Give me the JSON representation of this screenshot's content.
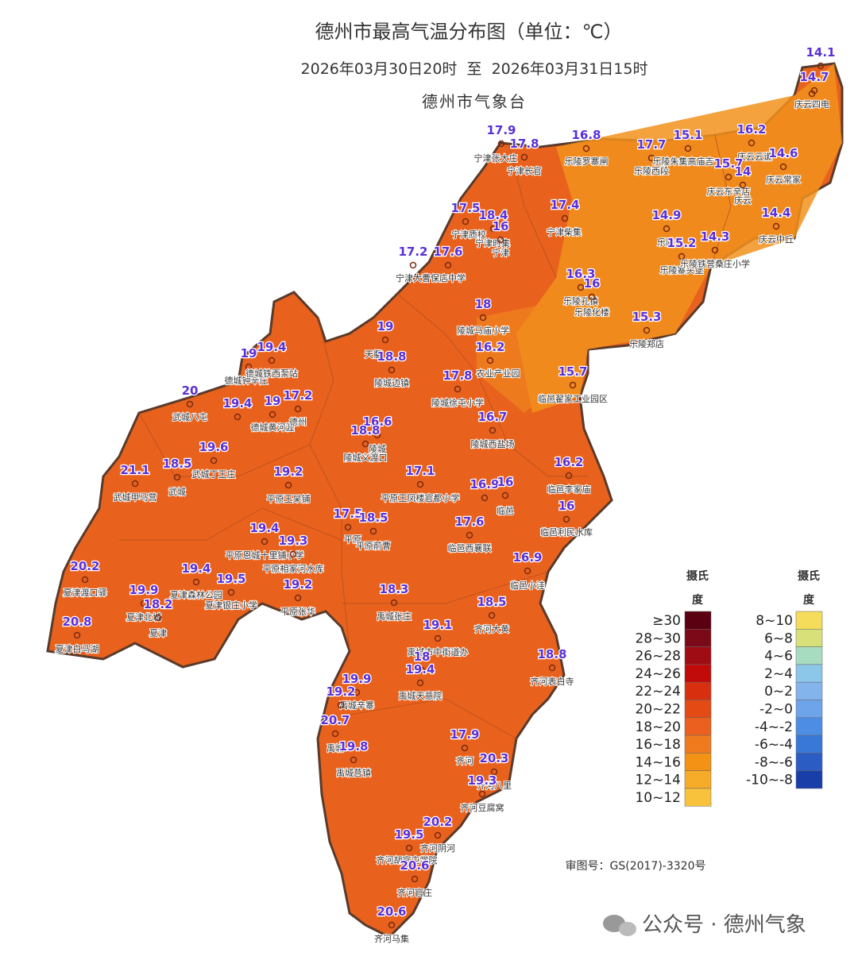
{
  "header": {
    "title": "德州市最高气温分布图（单位：℃）",
    "subtitle": "2026年03月30日20时  至  2026年03月31日15时",
    "source": "德州市气象台"
  },
  "stations": [
    {
      "name": null,
      "value": 14.1
    },
    {
      "name": null,
      "value": 14.7
    },
    {
      "name": "庆云四电",
      "value": null
    },
    {
      "name": "宁津张大庄",
      "value": 17.9
    },
    {
      "name": "宁津长官",
      "value": 17.8
    },
    {
      "name": "乐陵罗寨闸",
      "value": 16.8
    },
    {
      "name": "乐陵西段",
      "value": 17.7
    },
    {
      "name": "乐陵朱集高庙吉",
      "value": 15.1
    },
    {
      "name": "庆云云谦",
      "value": 16.2
    },
    {
      "name": "庆云东辛店",
      "value": 15.7
    },
    {
      "name": "庆云",
      "value": 14
    },
    {
      "name": "庆云常家",
      "value": 14.6
    },
    {
      "name": "宁津质校",
      "value": 17.5
    },
    {
      "name": "宁津时集",
      "value": 18.4
    },
    {
      "name": "宁津",
      "value": 16
    },
    {
      "name": "宁津柴集",
      "value": 17.4
    },
    {
      "name": "乐陵",
      "value": 14.9
    },
    {
      "name": "乐陵寨头堡",
      "value": 15.2
    },
    {
      "name": "乐陵铁营桑庄小学",
      "value": 14.3
    },
    {
      "name": "庆云中丘",
      "value": 14.4
    },
    {
      "name": "宁津大曹",
      "value": 17.2
    },
    {
      "name": "保店中学",
      "value": 17.6
    },
    {
      "name": "乐陵孔镇",
      "value": 16.3
    },
    {
      "name": "乐陵化楼",
      "value": 16
    },
    {
      "name": "乐陵郑店",
      "value": 15.3
    },
    {
      "name": "陵城马庙小学",
      "value": 18
    },
    {
      "name": "天衢",
      "value": 19
    },
    {
      "name": "陵城边镇",
      "value": 18.8
    },
    {
      "name": "农业产业园",
      "value": 16.2
    },
    {
      "name": "陵城徐屯小学",
      "value": 17.8
    },
    {
      "name": "临邑翟家工业园区",
      "value": 15.7
    },
    {
      "name": "德城钟辛庄",
      "value": 19
    },
    {
      "name": "德城铁西泵站",
      "value": 19.4
    },
    {
      "name": "武城八屯",
      "value": 20
    },
    {
      "name": null,
      "value": 19.4
    },
    {
      "name": "德城黄河涯",
      "value": 19
    },
    {
      "name": "德州",
      "value": 17.2
    },
    {
      "name": "陵城",
      "value": 16.6
    },
    {
      "name": "陵城义渡口",
      "value": 18.8
    },
    {
      "name": "陵城西盐场",
      "value": 16.7
    },
    {
      "name": "武城丁王庄",
      "value": 19.6
    },
    {
      "name": "武城",
      "value": 18.5
    },
    {
      "name": "武城甲马营",
      "value": 21.1
    },
    {
      "name": "平原王杲铺",
      "value": 19.2
    },
    {
      "name": "平原王凤楼官都小学",
      "value": 17.1
    },
    {
      "name": null,
      "value": 16.9
    },
    {
      "name": "临邑",
      "value": 16
    },
    {
      "name": "临邑李家庙",
      "value": 16.2
    },
    {
      "name": "临邑利民水库",
      "value": 16
    },
    {
      "name": "平原",
      "value": 17.5
    },
    {
      "name": "平原前曹",
      "value": 18.5
    },
    {
      "name": "临邑西襄联",
      "value": 17.6
    },
    {
      "name": "平原恩城十里铺小学",
      "value": 19.4
    },
    {
      "name": "平原相家河水库",
      "value": 19.3
    },
    {
      "name": "临邑小洼",
      "value": 16.9
    },
    {
      "name": "夏津渡口驿",
      "value": 20.2
    },
    {
      "name": "夏津森林公园",
      "value": 19.4
    },
    {
      "name": "夏津银庄小学",
      "value": 19.5
    },
    {
      "name": "平原张华",
      "value": 19.2
    },
    {
      "name": "夏津北城",
      "value": 19.9
    },
    {
      "name": "夏津",
      "value": 18.2
    },
    {
      "name": "夏津白马湖",
      "value": 20.8
    },
    {
      "name": "禹城张庄",
      "value": 18.3
    },
    {
      "name": "齐河大黄",
      "value": 18.5
    },
    {
      "name": "禹城市中街道办",
      "value": 19.1
    },
    {
      "name": "齐河表白寺",
      "value": 18.8
    },
    {
      "name": null,
      "value": 18
    },
    {
      "name": "禹城天意院",
      "value": 19.4
    },
    {
      "name": "禹城辛寨",
      "value": 19.9
    },
    {
      "name": null,
      "value": 19.2
    },
    {
      "name": "禹城",
      "value": 20.7
    },
    {
      "name": "禹城莒镇",
      "value": 19.8
    },
    {
      "name": "齐河",
      "value": 17.9
    },
    {
      "name": "齐河八里",
      "value": 20.3
    },
    {
      "name": "齐河豆腐窝",
      "value": 19.3
    },
    {
      "name": "齐河阴河",
      "value": 20.2
    },
    {
      "name": "齐河胡官屯学院",
      "value": 19.5
    },
    {
      "name": "齐河官庄",
      "value": 20.6
    },
    {
      "name": "齐河马集",
      "value": 20.6
    }
  ],
  "legend": {
    "title_lines": [
      "摄氏",
      "度"
    ],
    "warm": [
      {
        "label": "≥30",
        "color": "#5a0010"
      },
      {
        "label": "28~30",
        "color": "#7a0a18"
      },
      {
        "label": "26~28",
        "color": "#a00c14"
      },
      {
        "label": "24~26",
        "color": "#c10a0a"
      },
      {
        "label": "22~24",
        "color": "#d8300f"
      },
      {
        "label": "20~22",
        "color": "#e34a14"
      },
      {
        "label": "18~20",
        "color": "#eb601e"
      },
      {
        "label": "16~18",
        "color": "#f07a1e"
      },
      {
        "label": "14~16",
        "color": "#f39214"
      },
      {
        "label": "12~14",
        "color": "#f6ac28"
      },
      {
        "label": "10~12",
        "color": "#f8c23c"
      }
    ],
    "cool": [
      {
        "label": "8~10",
        "color": "#f5dc5a"
      },
      {
        "label": "6~8",
        "color": "#d8e07a"
      },
      {
        "label": "4~6",
        "color": "#a8dcc0"
      },
      {
        "label": "2~4",
        "color": "#8cc6e8"
      },
      {
        "label": "0~2",
        "color": "#84b4ec"
      },
      {
        "label": "-2~0",
        "color": "#6ea4ea"
      },
      {
        "label": "-4~-2",
        "color": "#4d8ee4"
      },
      {
        "label": "-6~-4",
        "color": "#3a78d8"
      },
      {
        "label": "-8~-6",
        "color": "#2a5cc4"
      },
      {
        "label": "-10~-8",
        "color": "#1a3ea8"
      }
    ]
  },
  "footer": {
    "approval": "审图号：GS(2017)-3320号",
    "watermark": "公众号 · 德州气象"
  }
}
